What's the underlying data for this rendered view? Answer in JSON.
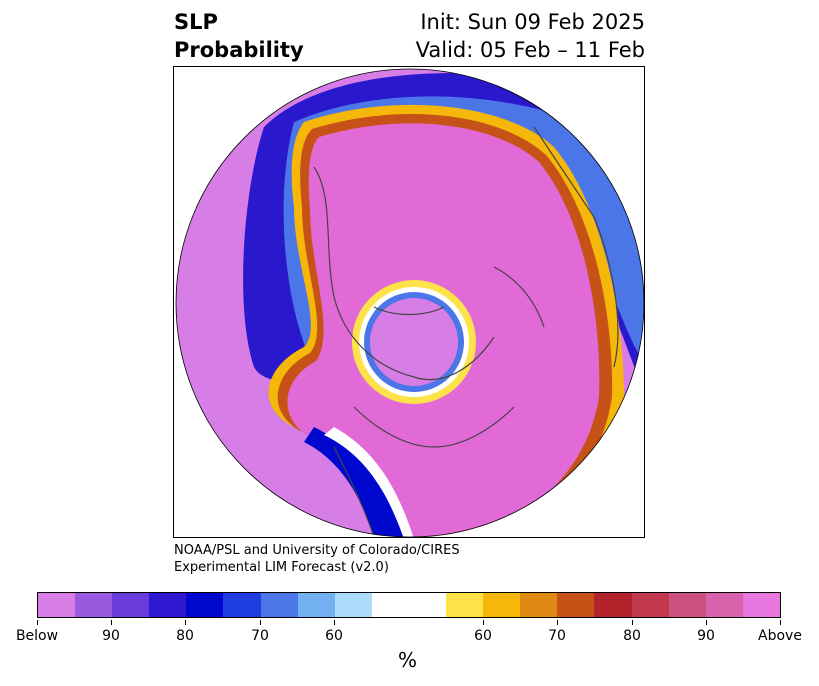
{
  "title": {
    "line1": "SLP",
    "line2": "Probability"
  },
  "init_label": "Init: Sun 09 Feb 2025",
  "valid_label": "Valid: 05 Feb – 11 Feb",
  "credit": {
    "line1": "NOAA/PSL and University of Colorado/CIRES",
    "line2": "Experimental LIM Forecast (v2.0)"
  },
  "colorbar": {
    "unit": "%",
    "colors": [
      "#d67ee6",
      "#9b59e0",
      "#6a3cdc",
      "#3018d0",
      "#0008d0",
      "#1f3de0",
      "#4a76e8",
      "#73b0f2",
      "#acdcfa",
      "#ffffff",
      "#ffffff",
      "#fde24a",
      "#f4b70a",
      "#e08a14",
      "#c65218",
      "#b2232b",
      "#c2384f",
      "#cc5080",
      "#d862ac",
      "#e776de"
    ],
    "tick_labels": [
      "Below",
      "90",
      "80",
      "70",
      "60",
      "60",
      "70",
      "80",
      "90",
      "Above"
    ]
  },
  "map": {
    "colors": {
      "above": "#e26ad6",
      "below": "#d67ee6",
      "coast": "#444444"
    }
  }
}
